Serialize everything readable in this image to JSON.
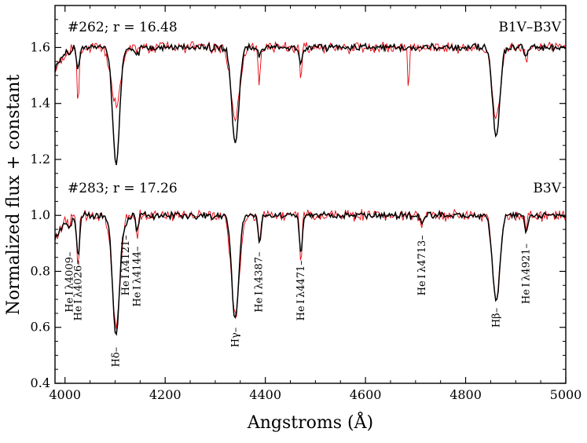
{
  "chart_data": {
    "type": "line",
    "title": "",
    "xlabel": "Angstroms (Å)",
    "ylabel": "Normalized flux + constant",
    "xlim": [
      3980,
      5000
    ],
    "ylim": [
      0.4,
      1.75
    ],
    "x_ticks": [
      4000,
      4200,
      4400,
      4600,
      4800,
      5000
    ],
    "x_tick_labels": [
      "4000",
      "4200",
      "4400",
      "4600",
      "4800",
      "5000"
    ],
    "y_ticks": [
      0.4,
      0.6,
      0.8,
      1.0,
      1.2,
      1.4,
      1.6
    ],
    "y_tick_labels": [
      "0.4",
      "0.6",
      "0.8",
      "1.0",
      "1.2",
      "1.4",
      "1.6"
    ],
    "colors": {
      "observed": "#000000",
      "template": "#e8000b"
    },
    "spectra": [
      {
        "id": "262",
        "label": "#262; r = 16.48",
        "spectral_type": "B1V–B3V",
        "continuum": 1.6,
        "observed_dips": [
          [
            4009,
            0.02,
            3
          ],
          [
            4026,
            0.08,
            3
          ],
          [
            4102,
            0.42,
            7
          ],
          [
            4144,
            0.03,
            3
          ],
          [
            4340,
            0.345,
            7
          ],
          [
            4388,
            0.03,
            3
          ],
          [
            4471,
            0.06,
            3
          ],
          [
            4861,
            0.325,
            7
          ],
          [
            4921,
            0.03,
            3
          ]
        ],
        "template_dips": [
          [
            4026,
            0.2,
            2
          ],
          [
            4102,
            0.2,
            10
          ],
          [
            4340,
            0.25,
            9
          ],
          [
            4388,
            0.12,
            2
          ],
          [
            4471,
            0.12,
            2
          ],
          [
            4686,
            0.17,
            1.5
          ],
          [
            4861,
            0.25,
            8
          ],
          [
            4921,
            0.05,
            2
          ]
        ]
      },
      {
        "id": "283",
        "label": "#283; r = 17.26",
        "spectral_type": "B3V",
        "continuum": 1.0,
        "observed_dips": [
          [
            4009,
            0.05,
            3
          ],
          [
            4026,
            0.15,
            3
          ],
          [
            4102,
            0.43,
            7
          ],
          [
            4121,
            0.03,
            3
          ],
          [
            4144,
            0.06,
            3
          ],
          [
            4340,
            0.37,
            7
          ],
          [
            4388,
            0.1,
            3
          ],
          [
            4471,
            0.14,
            3
          ],
          [
            4713,
            0.03,
            3
          ],
          [
            4861,
            0.31,
            7
          ],
          [
            4921,
            0.06,
            3
          ]
        ],
        "template_dips": [
          [
            4009,
            0.04,
            2
          ],
          [
            4026,
            0.22,
            2
          ],
          [
            4102,
            0.4,
            8
          ],
          [
            4144,
            0.08,
            2
          ],
          [
            4340,
            0.36,
            8
          ],
          [
            4388,
            0.1,
            2
          ],
          [
            4471,
            0.2,
            2
          ],
          [
            4713,
            0.05,
            2
          ],
          [
            4861,
            0.3,
            7
          ],
          [
            4921,
            0.06,
            2
          ]
        ]
      }
    ],
    "line_labels": [
      {
        "text": "He I λ4009–",
        "wavelength": 4009,
        "y": 0.87
      },
      {
        "text": "He I λ4026–",
        "wavelength": 4026,
        "y": 0.84
      },
      {
        "text": "Hδ–",
        "wavelength": 4102,
        "y": 0.53
      },
      {
        "text": "He I λ4121–",
        "wavelength": 4121,
        "y": 0.93
      },
      {
        "text": "He I λ4144–",
        "wavelength": 4144,
        "y": 0.89
      },
      {
        "text": "Hγ–",
        "wavelength": 4340,
        "y": 0.6
      },
      {
        "text": "He I λ4387–",
        "wavelength": 4387,
        "y": 0.87
      },
      {
        "text": "He I λ4471–",
        "wavelength": 4471,
        "y": 0.84
      },
      {
        "text": "He I λ4713–",
        "wavelength": 4713,
        "y": 0.93
      },
      {
        "text": "Hβ–",
        "wavelength": 4861,
        "y": 0.67
      },
      {
        "text": "He I λ4921–",
        "wavelength": 4921,
        "y": 0.9
      }
    ]
  }
}
